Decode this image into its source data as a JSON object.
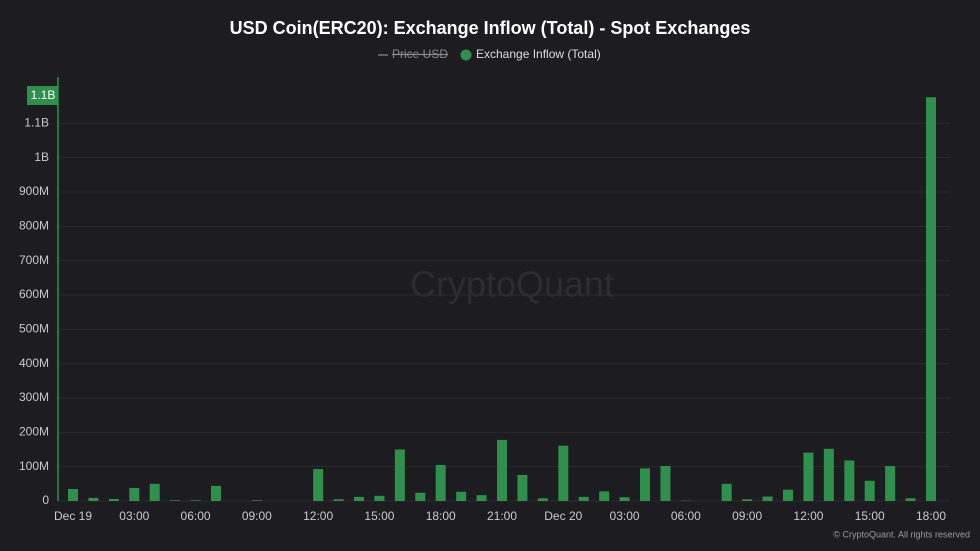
{
  "chart_data": {
    "type": "bar",
    "title": "USD Coin(ERC20): Exchange Inflow (Total) - Spot Exchanges",
    "legend_hidden": [
      "Price USD"
    ],
    "watermark": "CryptoQuant",
    "footer": "© CryptoQuant. All rights reserved",
    "cursor_label": "1.1B",
    "categories": [
      "Dec 19",
      null,
      null,
      "03:00",
      null,
      null,
      "06:00",
      null,
      null,
      "09:00",
      null,
      null,
      "12:00",
      null,
      null,
      "15:00",
      null,
      null,
      "18:00",
      null,
      null,
      "21:00",
      null,
      null,
      "Dec 20",
      null,
      null,
      "03:00",
      null,
      null,
      "06:00",
      null,
      null,
      "09:00",
      null,
      null,
      "12:00",
      null,
      null,
      "15:00",
      null,
      null,
      "18:00"
    ],
    "series": [
      {
        "name": "Exchange Inflow (Total)",
        "color": "#2f8f4c",
        "values": [
          35000000,
          9000000,
          6000000,
          38000000,
          50000000,
          2000000,
          2000000,
          44000000,
          0,
          2000000,
          0,
          0,
          93000000,
          5000000,
          12000000,
          15000000,
          150000000,
          24000000,
          105000000,
          27000000,
          17000000,
          178000000,
          76000000,
          8000000,
          161000000,
          12000000,
          28000000,
          11000000,
          95000000,
          102000000,
          1000000,
          0,
          50000000,
          5000000,
          13000000,
          33000000,
          141000000,
          152000000,
          118000000,
          59000000,
          102000000,
          8000000,
          1176000000
        ]
      }
    ],
    "ylim": [
      0,
      1200000000
    ],
    "yticks": [
      0,
      {
        "value": 100000000,
        "label": "100M"
      },
      {
        "value": 200000000,
        "label": "200M"
      },
      {
        "value": 300000000,
        "label": "300M"
      },
      {
        "value": 400000000,
        "label": "400M"
      },
      {
        "value": 500000000,
        "label": "500M"
      },
      {
        "value": 600000000,
        "label": "600M"
      },
      {
        "value": 700000000,
        "label": "700M"
      },
      {
        "value": 800000000,
        "label": "800M"
      },
      {
        "value": 900000000,
        "label": "900M"
      },
      {
        "value": 1000000000,
        "label": "1B"
      },
      {
        "value": 1100000000,
        "label": "1.1B"
      }
    ],
    "grid": true
  }
}
